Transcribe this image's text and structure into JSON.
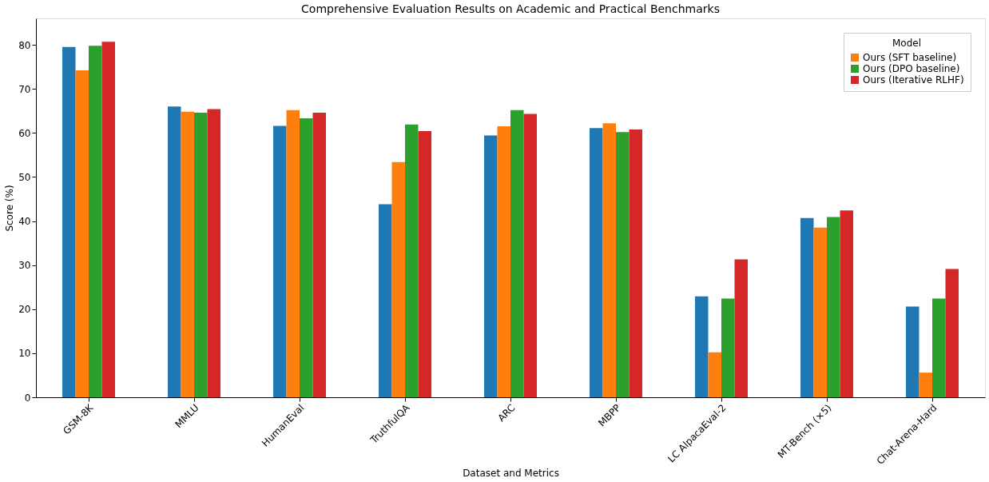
{
  "chart_data": {
    "type": "bar",
    "title": "Comprehensive Evaluation Results on Academic and Practical Benchmarks",
    "xlabel": "Dataset and Metrics",
    "ylabel": "Score (%)",
    "legend_title": "Model",
    "categories": [
      "GSM-8K",
      "MMLU",
      "HumanEval",
      "TruthfulQA",
      "ARC",
      "MBPP",
      "LC AlpacaEval-2",
      "MT-Bench (×5)",
      "Chat-Arena-Hard"
    ],
    "series": [
      {
        "color": "#1f77b4",
        "values": [
          79.5,
          66.0,
          61.6,
          43.8,
          59.4,
          61.1,
          22.9,
          40.7,
          20.6
        ]
      },
      {
        "name": "Ours (SFT baseline)",
        "color": "#ff7f0e",
        "values": [
          74.2,
          64.8,
          65.2,
          53.4,
          61.5,
          62.2,
          10.2,
          38.5,
          5.6
        ]
      },
      {
        "name": "Ours (DPO baseline)",
        "color": "#2ca02c",
        "values": [
          79.8,
          64.6,
          63.3,
          61.9,
          65.2,
          60.2,
          22.4,
          40.9,
          22.4
        ]
      },
      {
        "name": "Ours (Iterative RLHF)",
        "color": "#d62728",
        "values": [
          80.7,
          65.4,
          64.6,
          60.4,
          64.3,
          60.8,
          31.3,
          42.4,
          29.1
        ]
      }
    ],
    "ylim": [
      0,
      86
    ],
    "yticks": [
      0,
      10,
      20,
      30,
      40,
      50,
      60,
      70,
      80
    ],
    "grid": false,
    "legend": "top right"
  }
}
